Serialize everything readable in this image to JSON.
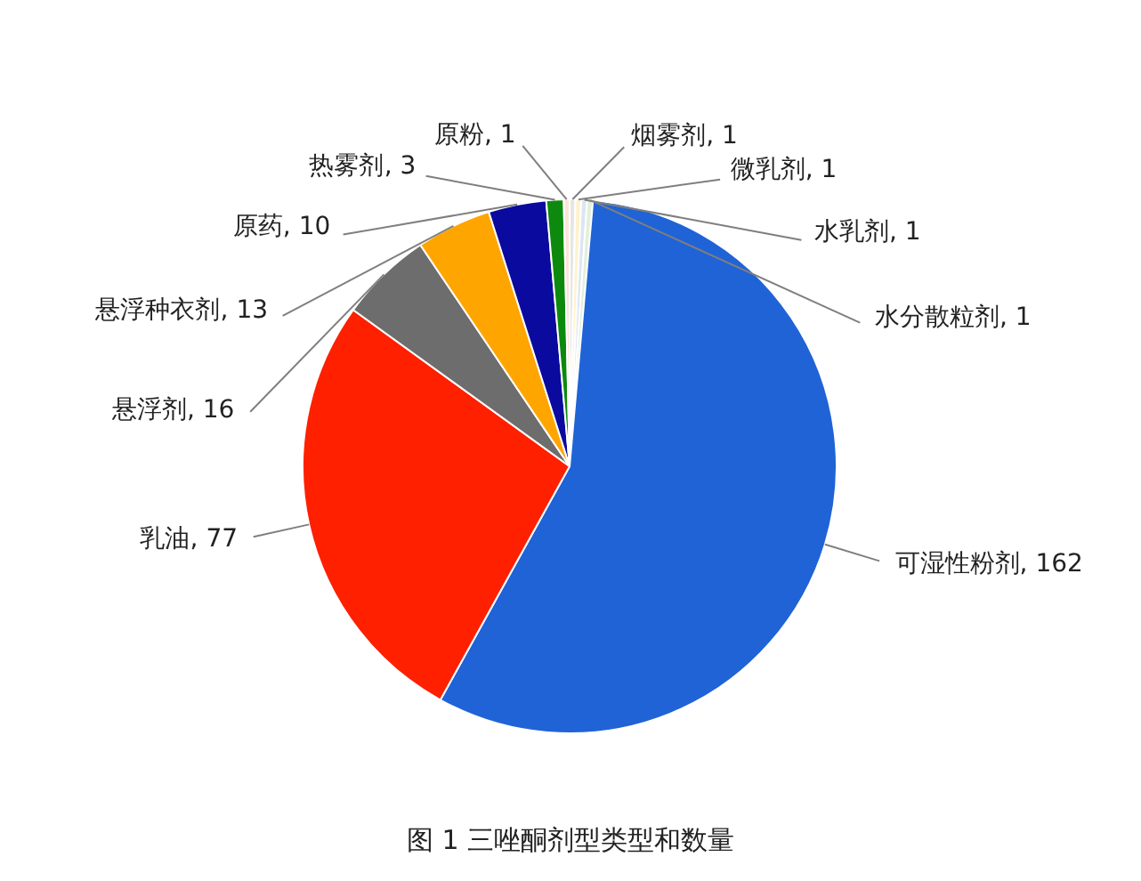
{
  "chart_data": {
    "type": "pie",
    "title": "图 1 三唑酮剂型类型和数量",
    "categories": [
      "烟雾剂",
      "微乳剂",
      "水乳剂",
      "水分散粒剂",
      "可湿性粉剂",
      "乳油",
      "悬浮剂",
      "悬浮种衣剂",
      "原药",
      "热雾剂",
      "原粉"
    ],
    "values": [
      1,
      1,
      1,
      1,
      162,
      77,
      16,
      13,
      10,
      3,
      1
    ],
    "colors": [
      "#e6e6e6",
      "#fff2cc",
      "#dce6f2",
      "#e2efda",
      "#1f63d6",
      "#ff2000",
      "#6d6d6d",
      "#ffa500",
      "#0a0a9e",
      "#0d8a0d",
      "#fbe5d6"
    ],
    "value_labels": [
      ", 1",
      ", 1",
      ", 1",
      ", 1",
      ", 162",
      ", 77",
      ", 16",
      ", 13",
      ", 10",
      ", 3",
      ", 1"
    ]
  }
}
